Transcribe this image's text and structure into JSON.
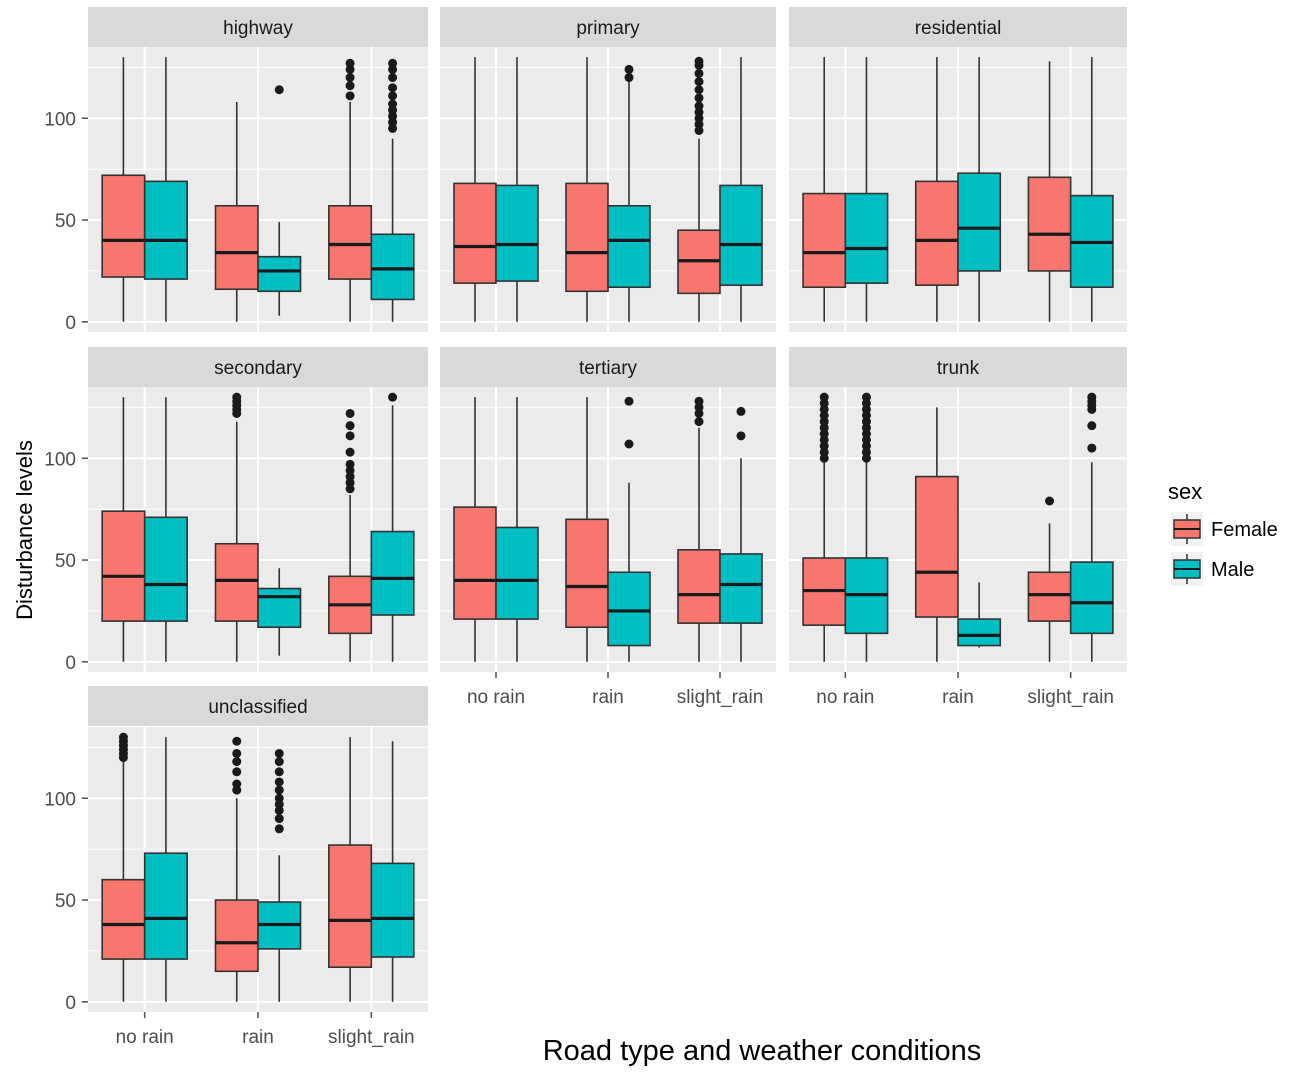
{
  "chart_data": {
    "type": "boxplot",
    "facet_by": "road_type",
    "facet_columns": 3,
    "xlabel": "Road type and weather conditions",
    "ylabel": "Disturbance levels",
    "ylim": [
      -5,
      135
    ],
    "yticks": [
      0,
      50,
      100
    ],
    "categories": [
      "no rain",
      "rain",
      "slight_rain"
    ],
    "legend": {
      "title": "sex",
      "placement": "right",
      "entries": [
        {
          "name": "Female",
          "color": "#F8766D"
        },
        {
          "name": "Male",
          "color": "#00BFC4"
        }
      ]
    },
    "colors": {
      "panel_bg": "#EBEBEB",
      "grid": "#FFFFFF",
      "strip_bg": "#D9D9D9",
      "outline": "#333333"
    },
    "panels": [
      {
        "name": "highway",
        "boxes": [
          {
            "category": "no rain",
            "sex": "Female",
            "min": 0,
            "q1": 22,
            "median": 40,
            "q3": 72,
            "max": 130,
            "outliers": []
          },
          {
            "category": "no rain",
            "sex": "Male",
            "min": 0,
            "q1": 21,
            "median": 40,
            "q3": 69,
            "max": 130,
            "outliers": []
          },
          {
            "category": "rain",
            "sex": "Female",
            "min": 0,
            "q1": 16,
            "median": 34,
            "q3": 57,
            "max": 108,
            "outliers": []
          },
          {
            "category": "rain",
            "sex": "Male",
            "min": 3,
            "q1": 15,
            "median": 25,
            "q3": 32,
            "max": 49,
            "outliers": [
              114
            ]
          },
          {
            "category": "slight_rain",
            "sex": "Female",
            "min": 0,
            "q1": 21,
            "median": 38,
            "q3": 57,
            "max": 108,
            "outliers": [
              111,
              116,
              120,
              124,
              127
            ]
          },
          {
            "category": "slight_rain",
            "sex": "Male",
            "min": 0,
            "q1": 11,
            "median": 26,
            "q3": 43,
            "max": 90,
            "outliers": [
              95,
              98,
              101,
              104,
              107,
              111,
              115,
              120,
              124,
              127
            ]
          }
        ]
      },
      {
        "name": "primary",
        "boxes": [
          {
            "category": "no rain",
            "sex": "Female",
            "min": 0,
            "q1": 19,
            "median": 37,
            "q3": 68,
            "max": 130,
            "outliers": []
          },
          {
            "category": "no rain",
            "sex": "Male",
            "min": 0,
            "q1": 20,
            "median": 38,
            "q3": 67,
            "max": 130,
            "outliers": []
          },
          {
            "category": "rain",
            "sex": "Female",
            "min": 0,
            "q1": 15,
            "median": 34,
            "q3": 68,
            "max": 130,
            "outliers": []
          },
          {
            "category": "rain",
            "sex": "Male",
            "min": 0,
            "q1": 17,
            "median": 40,
            "q3": 57,
            "max": 118,
            "outliers": [
              120,
              124
            ]
          },
          {
            "category": "slight_rain",
            "sex": "Female",
            "min": 0,
            "q1": 14,
            "median": 30,
            "q3": 45,
            "max": 90,
            "outliers": [
              94,
              97,
              100,
              103,
              106,
              110,
              114,
              118,
              122,
              126,
              128
            ]
          },
          {
            "category": "slight_rain",
            "sex": "Male",
            "min": 0,
            "q1": 18,
            "median": 38,
            "q3": 67,
            "max": 130,
            "outliers": []
          }
        ]
      },
      {
        "name": "residential",
        "boxes": [
          {
            "category": "no rain",
            "sex": "Female",
            "min": 0,
            "q1": 17,
            "median": 34,
            "q3": 63,
            "max": 130,
            "outliers": []
          },
          {
            "category": "no rain",
            "sex": "Male",
            "min": 0,
            "q1": 19,
            "median": 36,
            "q3": 63,
            "max": 130,
            "outliers": []
          },
          {
            "category": "rain",
            "sex": "Female",
            "min": 0,
            "q1": 18,
            "median": 40,
            "q3": 69,
            "max": 130,
            "outliers": []
          },
          {
            "category": "rain",
            "sex": "Male",
            "min": 0,
            "q1": 25,
            "median": 46,
            "q3": 73,
            "max": 130,
            "outliers": []
          },
          {
            "category": "slight_rain",
            "sex": "Female",
            "min": 0,
            "q1": 25,
            "median": 43,
            "q3": 71,
            "max": 128,
            "outliers": []
          },
          {
            "category": "slight_rain",
            "sex": "Male",
            "min": 0,
            "q1": 17,
            "median": 39,
            "q3": 62,
            "max": 130,
            "outliers": []
          }
        ]
      },
      {
        "name": "secondary",
        "boxes": [
          {
            "category": "no rain",
            "sex": "Female",
            "min": 0,
            "q1": 20,
            "median": 42,
            "q3": 74,
            "max": 130,
            "outliers": []
          },
          {
            "category": "no rain",
            "sex": "Male",
            "min": 0,
            "q1": 20,
            "median": 38,
            "q3": 71,
            "max": 130,
            "outliers": []
          },
          {
            "category": "rain",
            "sex": "Female",
            "min": 0,
            "q1": 20,
            "median": 40,
            "q3": 58,
            "max": 118,
            "outliers": [
              122,
              124,
              126,
              128,
              130
            ]
          },
          {
            "category": "rain",
            "sex": "Male",
            "min": 3,
            "q1": 17,
            "median": 32,
            "q3": 36,
            "max": 46,
            "outliers": []
          },
          {
            "category": "slight_rain",
            "sex": "Female",
            "min": 0,
            "q1": 14,
            "median": 28,
            "q3": 42,
            "max": 82,
            "outliers": [
              85,
              88,
              91,
              94,
              97,
              103,
              111,
              116,
              122
            ]
          },
          {
            "category": "slight_rain",
            "sex": "Male",
            "min": 0,
            "q1": 23,
            "median": 41,
            "q3": 64,
            "max": 126,
            "outliers": [
              130
            ]
          }
        ]
      },
      {
        "name": "tertiary",
        "boxes": [
          {
            "category": "no rain",
            "sex": "Female",
            "min": 0,
            "q1": 21,
            "median": 40,
            "q3": 76,
            "max": 130,
            "outliers": []
          },
          {
            "category": "no rain",
            "sex": "Male",
            "min": 0,
            "q1": 21,
            "median": 40,
            "q3": 66,
            "max": 130,
            "outliers": []
          },
          {
            "category": "rain",
            "sex": "Female",
            "min": 0,
            "q1": 17,
            "median": 37,
            "q3": 70,
            "max": 130,
            "outliers": []
          },
          {
            "category": "rain",
            "sex": "Male",
            "min": 0,
            "q1": 8,
            "median": 25,
            "q3": 44,
            "max": 88,
            "outliers": [
              107,
              128
            ]
          },
          {
            "category": "slight_rain",
            "sex": "Female",
            "min": 0,
            "q1": 19,
            "median": 33,
            "q3": 55,
            "max": 115,
            "outliers": [
              118,
              122,
              125,
              128
            ]
          },
          {
            "category": "slight_rain",
            "sex": "Male",
            "min": 0,
            "q1": 19,
            "median": 38,
            "q3": 53,
            "max": 100,
            "outliers": [
              111,
              123
            ]
          }
        ]
      },
      {
        "name": "trunk",
        "boxes": [
          {
            "category": "no rain",
            "sex": "Female",
            "min": 0,
            "q1": 18,
            "median": 35,
            "q3": 51,
            "max": 98,
            "outliers": [
              100,
              103,
              106,
              109,
              112,
              115,
              118,
              121,
              124,
              127,
              130
            ]
          },
          {
            "category": "no rain",
            "sex": "Male",
            "min": 0,
            "q1": 14,
            "median": 33,
            "q3": 51,
            "max": 98,
            "outliers": [
              100,
              103,
              106,
              109,
              112,
              115,
              118,
              121,
              124,
              127,
              130
            ]
          },
          {
            "category": "rain",
            "sex": "Female",
            "min": 0,
            "q1": 22,
            "median": 44,
            "q3": 91,
            "max": 125,
            "outliers": []
          },
          {
            "category": "rain",
            "sex": "Male",
            "min": 7,
            "q1": 8,
            "median": 13,
            "q3": 21,
            "max": 39,
            "outliers": []
          },
          {
            "category": "slight_rain",
            "sex": "Female",
            "min": 0,
            "q1": 20,
            "median": 33,
            "q3": 44,
            "max": 68,
            "outliers": [
              79
            ]
          },
          {
            "category": "slight_rain",
            "sex": "Male",
            "min": 0,
            "q1": 14,
            "median": 29,
            "q3": 49,
            "max": 98,
            "outliers": [
              105,
              116,
              124,
              126,
              128,
              130
            ]
          }
        ]
      },
      {
        "name": "unclassified",
        "boxes": [
          {
            "category": "no rain",
            "sex": "Female",
            "min": 0,
            "q1": 21,
            "median": 38,
            "q3": 60,
            "max": 118,
            "outliers": [
              120,
              122,
              124,
              126,
              128,
              130
            ]
          },
          {
            "category": "no rain",
            "sex": "Male",
            "min": 0,
            "q1": 21,
            "median": 41,
            "q3": 73,
            "max": 130,
            "outliers": []
          },
          {
            "category": "rain",
            "sex": "Female",
            "min": 0,
            "q1": 15,
            "median": 29,
            "q3": 50,
            "max": 100,
            "outliers": [
              104,
              107,
              113,
              118,
              122,
              128
            ]
          },
          {
            "category": "rain",
            "sex": "Male",
            "min": 0,
            "q1": 26,
            "median": 38,
            "q3": 49,
            "max": 72,
            "outliers": [
              85,
              90,
              94,
              97,
              100,
              104,
              108,
              113,
              118,
              122
            ]
          },
          {
            "category": "slight_rain",
            "sex": "Female",
            "min": 0,
            "q1": 17,
            "median": 40,
            "q3": 77,
            "max": 130,
            "outliers": []
          },
          {
            "category": "slight_rain",
            "sex": "Male",
            "min": 0,
            "q1": 22,
            "median": 41,
            "q3": 68,
            "max": 128,
            "outliers": []
          }
        ]
      }
    ]
  }
}
